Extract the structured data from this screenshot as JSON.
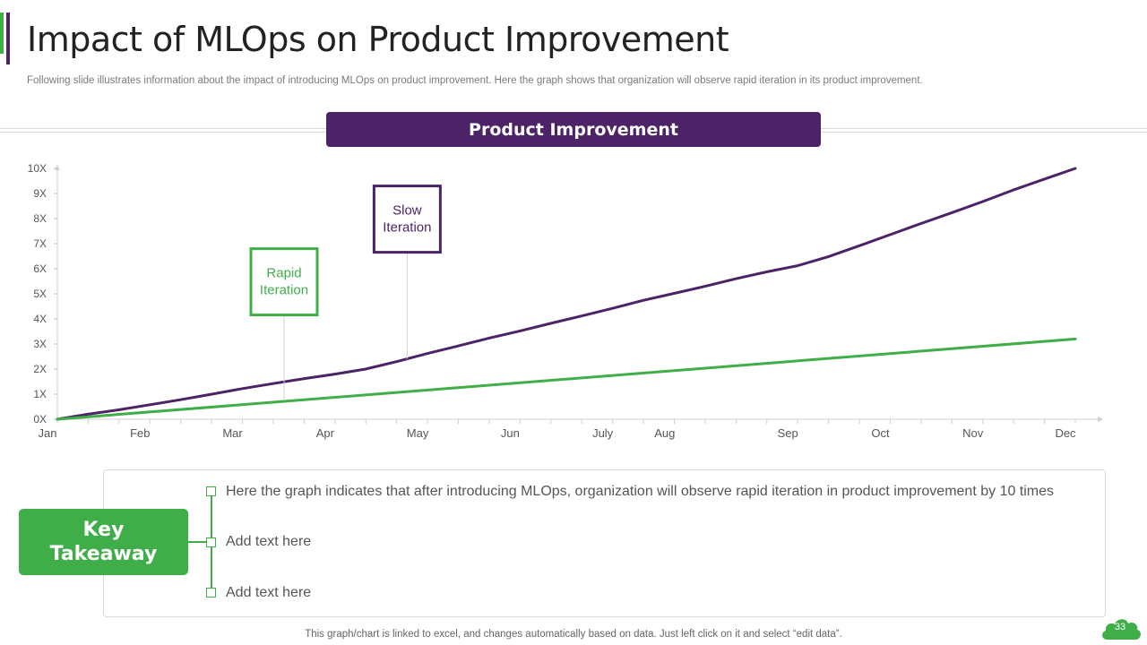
{
  "slide": {
    "title": "Impact of MLOps on Product Improvement",
    "subtitle": "Following slide illustrates information about the impact of introducing MLOps on product improvement. Here the graph shows that organization will observe rapid iteration in its product improvement.",
    "chart_header": "Product Improvement",
    "footer_note": "This graph/chart is linked to excel, and changes automatically based on data. Just left click on it and select “edit data”.",
    "page_number": "33"
  },
  "takeaway": {
    "badge": "Key\nTakeaway",
    "points": [
      "Here the graph indicates that after introducing MLOps, organization will observe rapid iteration in product improvement by 10 times",
      "Add text here",
      "Add text here"
    ]
  },
  "colors": {
    "purple": "#4b2366",
    "green": "#3fae49"
  },
  "chart_data": {
    "type": "line",
    "title": "",
    "xlabel": "",
    "ylabel": "",
    "categories": [
      "Jan",
      "Feb",
      "Mar",
      "Apr",
      "May",
      "Jun",
      "July",
      "Aug",
      "Sep",
      "Oct",
      "Nov",
      "Dec"
    ],
    "x": [
      0,
      1,
      2,
      3,
      4,
      5,
      6,
      6.67,
      8,
      9,
      10,
      11
    ],
    "yticks": [
      "0X",
      "1X",
      "2X",
      "3X",
      "4X",
      "5X",
      "6X",
      "7X",
      "8X",
      "9X",
      "10X"
    ],
    "ylim": [
      0,
      10
    ],
    "xlim": [
      0,
      11.3
    ],
    "grid": false,
    "series": [
      {
        "color": "#4b2366",
        "points": [
          [
            0,
            0
          ],
          [
            0.33,
            0.2
          ],
          [
            0.67,
            0.38
          ],
          [
            1,
            0.58
          ],
          [
            1.33,
            0.78
          ],
          [
            1.67,
            1.0
          ],
          [
            2,
            1.22
          ],
          [
            2.33,
            1.42
          ],
          [
            2.67,
            1.62
          ],
          [
            3,
            1.8
          ],
          [
            3.33,
            2.0
          ],
          [
            3.67,
            2.3
          ],
          [
            4,
            2.62
          ],
          [
            4.33,
            2.92
          ],
          [
            4.67,
            3.24
          ],
          [
            5,
            3.52
          ],
          [
            5.33,
            3.82
          ],
          [
            5.67,
            4.12
          ],
          [
            6,
            4.42
          ],
          [
            6.33,
            4.74
          ],
          [
            6.67,
            5.02
          ],
          [
            7,
            5.3
          ],
          [
            7.33,
            5.6
          ],
          [
            7.67,
            5.88
          ],
          [
            8,
            6.12
          ],
          [
            8.33,
            6.48
          ],
          [
            8.67,
            6.92
          ],
          [
            9,
            7.36
          ],
          [
            9.33,
            7.8
          ],
          [
            9.67,
            8.24
          ],
          [
            10,
            8.68
          ],
          [
            10.33,
            9.14
          ],
          [
            10.67,
            9.58
          ],
          [
            11,
            10.0
          ]
        ]
      },
      {
        "color": "#3fae49",
        "points": [
          [
            0,
            0
          ],
          [
            11,
            3.2
          ]
        ]
      }
    ],
    "annotations": [
      {
        "text": "Rapid\nIteration",
        "color": "#3fae49",
        "anchor_x": 2.45,
        "anchor_y": 0.75,
        "box_y": 5.8
      },
      {
        "text": "Slow\nIteration",
        "color": "#4b2366",
        "anchor_x": 3.78,
        "anchor_y": 2.4,
        "box_y": 8.3
      }
    ]
  }
}
